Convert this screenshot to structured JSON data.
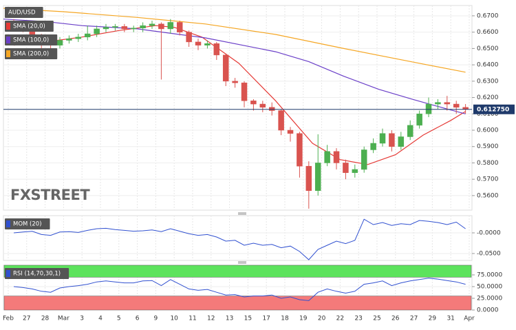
{
  "chart_data": [
    {
      "type": "candlestick",
      "title": "AUD/USD",
      "watermark": "FXSTREET",
      "categories": [
        "Feb",
        "27",
        "28",
        "Mar",
        "3",
        "4",
        "5",
        "6",
        "9",
        "10",
        "11",
        "12",
        "13",
        "15",
        "17",
        "18",
        "19",
        "20",
        "22",
        "23",
        "25",
        "26",
        "27",
        "29",
        "31",
        "Apr"
      ],
      "xlim": [
        -0.26,
        25.15
      ],
      "ylim": [
        0.5511,
        0.6763
      ],
      "yticks": [
        {
          "value": 0.56,
          "label": "0.5600"
        },
        {
          "value": 0.57,
          "label": "0.5700"
        },
        {
          "value": 0.58,
          "label": "0.5800"
        },
        {
          "value": 0.59,
          "label": "0.5900"
        },
        {
          "value": 0.6,
          "label": "0.6000"
        },
        {
          "value": 0.61,
          "label": "0.6100"
        },
        {
          "value": 0.62,
          "label": "0.6200"
        },
        {
          "value": 0.63,
          "label": "0.6300"
        },
        {
          "value": 0.64,
          "label": "0.6400"
        },
        {
          "value": 0.65,
          "label": "0.6500"
        },
        {
          "value": 0.66,
          "label": "0.6600"
        },
        {
          "value": 0.67,
          "label": "0.6700"
        }
      ],
      "up_color": "#4caf50",
      "down_color": "#d9534f",
      "current_price": {
        "value": 0.61275,
        "label": "0.612750",
        "color": "#1f3a6b"
      },
      "candles": {
        "x": [
          0.3,
          0.8,
          1.3,
          1.8,
          2.3,
          2.8,
          3.3,
          3.8,
          4.3,
          4.8,
          5.3,
          5.8,
          6.3,
          6.8,
          7.3,
          7.8,
          8.3,
          8.8,
          9.3,
          9.8,
          10.3,
          10.8,
          11.3,
          11.8,
          12.3,
          12.8,
          13.3,
          13.8,
          14.3,
          14.8,
          15.3,
          15.8,
          16.3,
          16.8,
          17.3,
          17.8,
          18.3,
          18.8,
          19.3,
          19.8,
          20.3,
          20.8,
          21.3,
          21.8,
          22.3,
          22.8,
          23.3,
          23.8,
          24.3,
          24.8
        ],
        "open": [
          0.666,
          0.664,
          0.662,
          0.658,
          0.654,
          0.652,
          0.655,
          0.656,
          0.657,
          0.659,
          0.662,
          0.663,
          0.6635,
          0.662,
          0.6625,
          0.664,
          0.665,
          0.662,
          0.666,
          0.66,
          0.654,
          0.652,
          0.653,
          0.646,
          0.63,
          0.629,
          0.618,
          0.616,
          0.614,
          0.612,
          0.6,
          0.598,
          0.578,
          0.563,
          0.58,
          0.587,
          0.58,
          0.574,
          0.576,
          0.588,
          0.592,
          0.598,
          0.59,
          0.596,
          0.603,
          0.61,
          0.616,
          0.617,
          0.616,
          0.614
        ],
        "high": [
          0.668,
          0.666,
          0.663,
          0.659,
          0.656,
          0.657,
          0.658,
          0.659,
          0.664,
          0.664,
          0.665,
          0.665,
          0.665,
          0.664,
          0.666,
          0.667,
          0.666,
          0.668,
          0.667,
          0.661,
          0.656,
          0.655,
          0.654,
          0.647,
          0.632,
          0.63,
          0.619,
          0.618,
          0.617,
          0.613,
          0.602,
          0.599,
          0.581,
          0.5975,
          0.591,
          0.589,
          0.582,
          0.579,
          0.59,
          0.595,
          0.601,
          0.6,
          0.599,
          0.606,
          0.612,
          0.62,
          0.619,
          0.621,
          0.618,
          0.616
        ],
        "low": [
          0.662,
          0.66,
          0.656,
          0.65,
          0.645,
          0.65,
          0.653,
          0.654,
          0.655,
          0.657,
          0.66,
          0.661,
          0.66,
          0.66,
          0.66,
          0.662,
          0.631,
          0.659,
          0.658,
          0.651,
          0.649,
          0.65,
          0.643,
          0.627,
          0.626,
          0.614,
          0.612,
          0.611,
          0.609,
          0.597,
          0.593,
          0.571,
          0.552,
          0.56,
          0.578,
          0.576,
          0.57,
          0.571,
          0.574,
          0.586,
          0.59,
          0.587,
          0.588,
          0.594,
          0.601,
          0.608,
          0.613,
          0.612,
          0.61,
          0.61
        ],
        "close": [
          0.664,
          0.662,
          0.658,
          0.654,
          0.652,
          0.655,
          0.656,
          0.657,
          0.659,
          0.662,
          0.663,
          0.6635,
          0.662,
          0.6625,
          0.664,
          0.665,
          0.662,
          0.666,
          0.66,
          0.654,
          0.652,
          0.653,
          0.646,
          0.63,
          0.629,
          0.618,
          0.616,
          0.614,
          0.612,
          0.6,
          0.598,
          0.578,
          0.563,
          0.58,
          0.587,
          0.58,
          0.574,
          0.576,
          0.588,
          0.592,
          0.598,
          0.59,
          0.596,
          0.603,
          0.61,
          0.616,
          0.617,
          0.616,
          0.614,
          0.6128
        ]
      },
      "series": [
        {
          "name": "SMA (20,0)",
          "color": "#e53935",
          "x": [
            0.3,
            2,
            4,
            6,
            8,
            9,
            10.5,
            12.5,
            14.5,
            16.5,
            18,
            19.5,
            21,
            22.5,
            24,
            24.8
          ],
          "values": [
            0.652,
            0.654,
            0.657,
            0.661,
            0.664,
            0.663,
            0.657,
            0.641,
            0.618,
            0.592,
            0.582,
            0.579,
            0.585,
            0.597,
            0.606,
            0.6115
          ]
        },
        {
          "name": "SMA (100,0)",
          "color": "#6a3fc8",
          "x": [
            -0.26,
            2,
            4,
            7,
            10.7,
            14.5,
            16.3,
            18.2,
            20.1,
            21.9,
            23.8,
            24.8
          ],
          "values": [
            0.668,
            0.6665,
            0.664,
            0.662,
            0.6565,
            0.648,
            0.642,
            0.633,
            0.625,
            0.619,
            0.613,
            0.61
          ],
          "_": null
        },
        {
          "name": "SMA (200,0)",
          "color": "#f5a623",
          "x": [
            -0.26,
            3,
            7,
            10.7,
            14.5,
            18.2,
            21.9,
            24.8
          ],
          "values": [
            0.6746,
            0.6725,
            0.669,
            0.665,
            0.6586,
            0.65,
            0.6418,
            0.6355
          ]
        }
      ]
    },
    {
      "type": "line",
      "title": "MOM (20)",
      "color": "#3050d0",
      "xlim": [
        -0.26,
        25.15
      ],
      "ylim": [
        -0.0667,
        0.0417
      ],
      "yticks": [
        {
          "value": 0,
          "label": "-0.0000"
        },
        {
          "value": -0.05,
          "label": "-0.0500"
        }
      ],
      "x": [
        0.3,
        0.8,
        1.3,
        1.8,
        2.3,
        2.8,
        3.3,
        3.8,
        4.3,
        4.8,
        5.3,
        5.8,
        6.3,
        6.8,
        7.3,
        7.8,
        8.3,
        8.8,
        9.3,
        9.8,
        10.3,
        10.8,
        11.3,
        11.8,
        12.3,
        12.8,
        13.3,
        13.8,
        14.3,
        14.8,
        15.3,
        15.8,
        16.3,
        16.8,
        17.3,
        17.8,
        18.3,
        18.8,
        19.3,
        19.8,
        20.3,
        20.8,
        21.3,
        21.8,
        22.3,
        22.8,
        23.3,
        23.8,
        24.3,
        24.8
      ],
      "values": [
        0,
        0.002,
        0.004,
        -0.004,
        -0.006,
        0.002,
        0.003,
        0.001,
        0.006,
        0.01,
        0.011,
        0.008,
        0.006,
        0.004,
        0.005,
        0.007,
        0.003,
        0.01,
        0.004,
        -0.002,
        -0.006,
        -0.004,
        -0.01,
        -0.02,
        -0.018,
        -0.03,
        -0.025,
        -0.03,
        -0.028,
        -0.036,
        -0.032,
        -0.045,
        -0.065,
        -0.04,
        -0.03,
        -0.02,
        -0.026,
        -0.018,
        0.033,
        0.02,
        0.025,
        0.018,
        0.022,
        0.02,
        0.03,
        0.028,
        0.025,
        0.02,
        0.026,
        0.01
      ]
    },
    {
      "type": "line",
      "title": "RSI (14,70,30,1)",
      "color": "#3050d0",
      "xlim": [
        -0.26,
        25.15
      ],
      "ylim": [
        0,
        95.6
      ],
      "yticks": [
        {
          "value": 0,
          "label": "0.0000"
        },
        {
          "value": 25,
          "label": "25.0000"
        },
        {
          "value": 50,
          "label": "50.0000"
        },
        {
          "value": 75,
          "label": "75.0000"
        }
      ],
      "bands": [
        {
          "from": 70,
          "to": 95.6,
          "color": "#5de35d"
        },
        {
          "from": 0,
          "to": 30,
          "color": "#f47a7a"
        }
      ],
      "x": [
        0.3,
        0.8,
        1.3,
        1.8,
        2.3,
        2.8,
        3.3,
        3.8,
        4.3,
        4.8,
        5.3,
        5.8,
        6.3,
        6.8,
        7.3,
        7.8,
        8.3,
        8.8,
        9.3,
        9.8,
        10.3,
        10.8,
        11.3,
        11.8,
        12.3,
        12.8,
        13.3,
        13.8,
        14.3,
        14.8,
        15.3,
        15.8,
        16.3,
        16.8,
        17.3,
        17.8,
        18.3,
        18.8,
        19.3,
        19.8,
        20.3,
        20.8,
        21.3,
        21.8,
        22.3,
        22.8,
        23.3,
        23.8,
        24.3,
        24.8
      ],
      "values": [
        50,
        48,
        45,
        40,
        38,
        47,
        50,
        52,
        55,
        60,
        62,
        60,
        58,
        58,
        62,
        63,
        52,
        65,
        55,
        45,
        42,
        44,
        38,
        32,
        33,
        28,
        30,
        30,
        32,
        25,
        28,
        22,
        20,
        38,
        45,
        40,
        36,
        40,
        55,
        58,
        62,
        52,
        58,
        62,
        65,
        68,
        66,
        63,
        60,
        55
      ]
    }
  ]
}
